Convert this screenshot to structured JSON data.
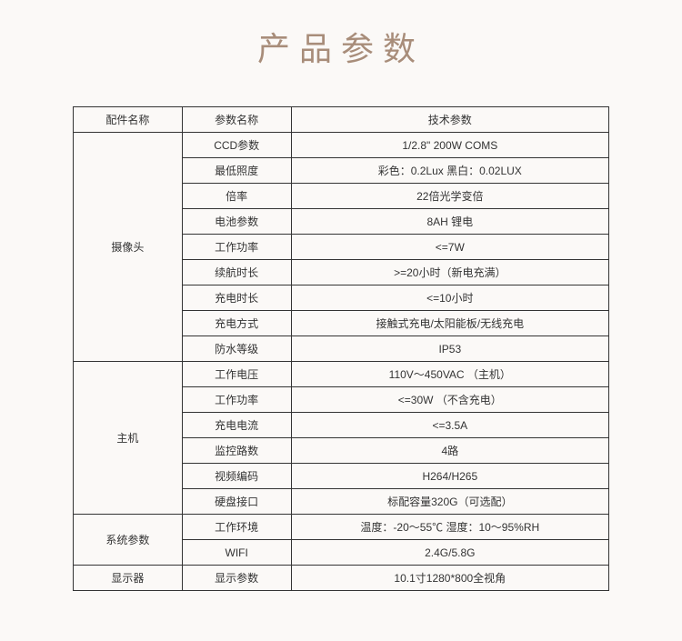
{
  "title": "产品参数",
  "table": {
    "headers": {
      "col1": "配件名称",
      "col2": "参数名称",
      "col3": "技术参数"
    },
    "sections": [
      {
        "group": "摄像头",
        "rowspan": 9,
        "rows": [
          {
            "param": "CCD参数",
            "value": "1/2.8\" 200W COMS"
          },
          {
            "param": "最低照度",
            "value": "彩色：0.2Lux  黑白：0.02LUX"
          },
          {
            "param": "倍率",
            "value": "22倍光学变倍"
          },
          {
            "param": "电池参数",
            "value": "8AH 锂电"
          },
          {
            "param": "工作功率",
            "value": "<=7W"
          },
          {
            "param": "续航时长",
            "value": ">=20小时（新电充满）"
          },
          {
            "param": "充电时长",
            "value": "<=10小时"
          },
          {
            "param": "充电方式",
            "value": "接触式充电/太阳能板/无线充电"
          },
          {
            "param": "防水等级",
            "value": "IP53"
          }
        ]
      },
      {
        "group": "主机",
        "rowspan": 6,
        "rows": [
          {
            "param": "工作电压",
            "value": "110V～450VAC （主机）"
          },
          {
            "param": "工作功率",
            "value": "<=30W （不含充电）"
          },
          {
            "param": "充电电流",
            "value": "<=3.5A"
          },
          {
            "param": "监控路数",
            "value": "4路"
          },
          {
            "param": "视频编码",
            "value": "H264/H265"
          },
          {
            "param": "硬盘接口",
            "value": "标配容量320G（可选配）"
          }
        ]
      },
      {
        "group": "系统参数",
        "rowspan": 2,
        "rows": [
          {
            "param": "工作环境",
            "value": "温度：-20～55℃ 湿度：10～95%RH"
          },
          {
            "param": "WIFI",
            "value": "2.4G/5.8G"
          }
        ]
      },
      {
        "group": "显示器",
        "rowspan": 1,
        "rows": [
          {
            "param": "显示参数",
            "value": "10.1寸1280*800全视角"
          }
        ]
      }
    ]
  },
  "styles": {
    "background_color": "#fbf9f7",
    "title_color": "#a88d7a",
    "title_fontsize": 36,
    "border_color": "#333333",
    "text_color": "#333333",
    "cell_fontsize": 12
  }
}
